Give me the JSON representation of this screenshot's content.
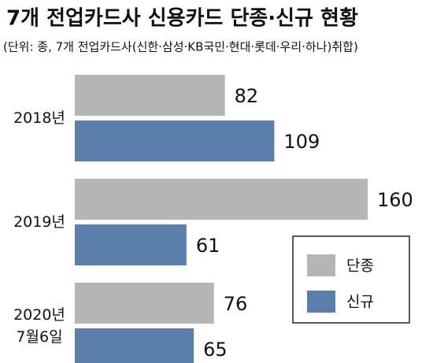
{
  "chart_data": {
    "type": "bar",
    "orientation": "horizontal",
    "title": "7개 전업카드사 신용카드 단종·신규 현황",
    "subtitle": "(단위: 종, 7개 전업카드사(신한·삼성·KB국민·현대·롯데·우리·하나)취합)",
    "categories": [
      "2018년",
      "2019년",
      "2020년\n7월6일"
    ],
    "series": [
      {
        "name": "단종",
        "color": "#b5b5b5",
        "values": [
          82,
          160,
          76
        ]
      },
      {
        "name": "신규",
        "color": "#5b7fab",
        "values": [
          109,
          61,
          65
        ]
      }
    ],
    "legend": "lower right"
  }
}
